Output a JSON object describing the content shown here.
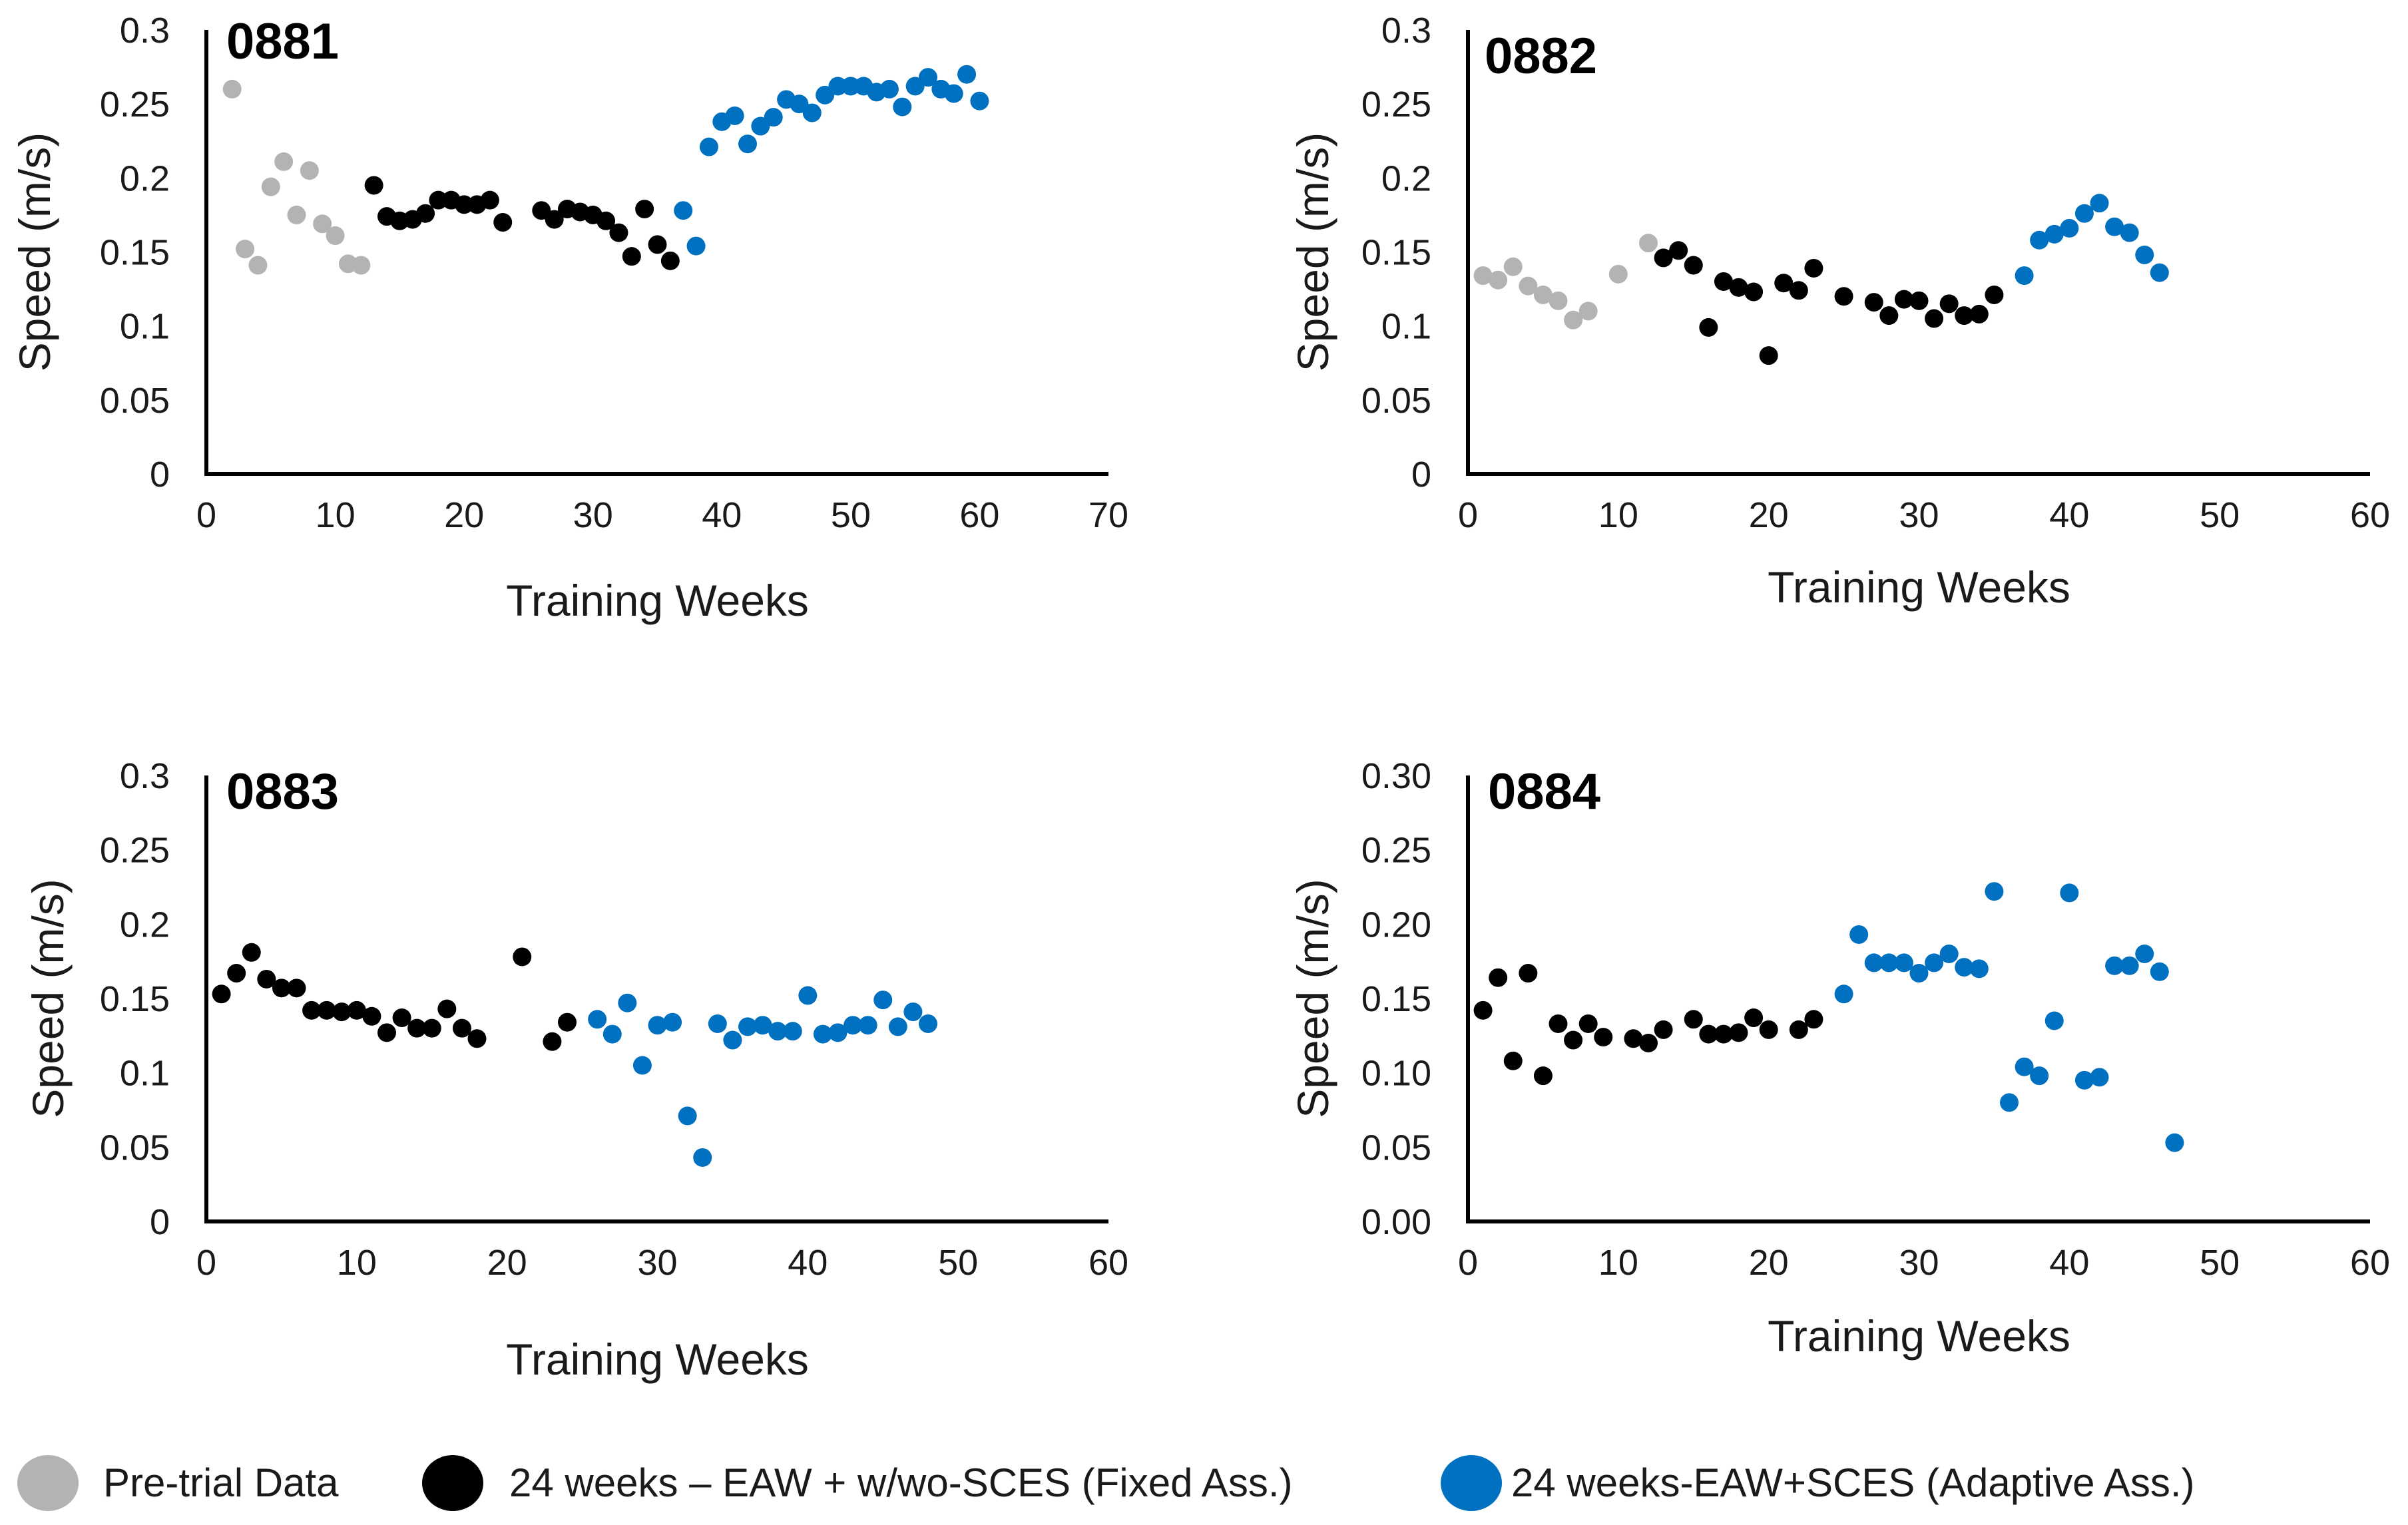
{
  "colors": {
    "pre_trial": "#b3b3b3",
    "fixed": "#000000",
    "adaptive": "#0070c0"
  },
  "legend": [
    {
      "key": "pre_trial",
      "label": "Pre-trial Data"
    },
    {
      "key": "fixed",
      "label": "24 weeks – EAW + w/wo-SCES (Fixed Ass.)"
    },
    {
      "key": "adaptive",
      "label": "24 weeks-EAW+SCES (Adaptive Ass.)"
    }
  ],
  "chart_data": [
    {
      "type": "scatter",
      "title": "0881",
      "xlabel": "Training Weeks",
      "ylabel": "Speed (m/s)",
      "xlim": [
        0,
        70
      ],
      "ylim": [
        0,
        0.3
      ],
      "xticks": [
        "0",
        "10",
        "20",
        "30",
        "40",
        "50",
        "60",
        "70"
      ],
      "yticks": [
        "0",
        "0.05",
        "0.1",
        "0.15",
        "0.2",
        "0.25",
        "0.3"
      ],
      "series": [
        {
          "name": "Pre-trial Data",
          "key": "pre_trial",
          "points": [
            [
              2,
              0.26
            ],
            [
              3,
              0.152
            ],
            [
              4,
              0.141
            ],
            [
              5,
              0.194
            ],
            [
              6,
              0.211
            ],
            [
              7,
              0.175
            ],
            [
              8,
              0.205
            ],
            [
              9,
              0.169
            ],
            [
              10,
              0.161
            ],
            [
              11,
              0.142
            ],
            [
              12,
              0.141
            ]
          ]
        },
        {
          "name": "24 weeks – EAW + w/wo-SCES (Fixed Ass.)",
          "key": "fixed",
          "points": [
            [
              13,
              0.195
            ],
            [
              14,
              0.174
            ],
            [
              15,
              0.171
            ],
            [
              16,
              0.172
            ],
            [
              17,
              0.176
            ],
            [
              18,
              0.185
            ],
            [
              19,
              0.185
            ],
            [
              20,
              0.182
            ],
            [
              21,
              0.182
            ],
            [
              22,
              0.185
            ],
            [
              23,
              0.17
            ],
            [
              26,
              0.178
            ],
            [
              27,
              0.172
            ],
            [
              28,
              0.179
            ],
            [
              29,
              0.177
            ],
            [
              30,
              0.175
            ],
            [
              31,
              0.171
            ],
            [
              32,
              0.163
            ],
            [
              33,
              0.147
            ],
            [
              34,
              0.179
            ],
            [
              35,
              0.155
            ],
            [
              36,
              0.144
            ]
          ]
        },
        {
          "name": "24 weeks-EAW+SCES (Adaptive Ass.)",
          "key": "adaptive",
          "points": [
            [
              37,
              0.178
            ],
            [
              38,
              0.154
            ],
            [
              39,
              0.221
            ],
            [
              40,
              0.238
            ],
            [
              41,
              0.242
            ],
            [
              42,
              0.223
            ],
            [
              43,
              0.235
            ],
            [
              44,
              0.241
            ],
            [
              45,
              0.253
            ],
            [
              46,
              0.25
            ],
            [
              47,
              0.244
            ],
            [
              48,
              0.256
            ],
            [
              49,
              0.262
            ],
            [
              50,
              0.262
            ],
            [
              51,
              0.262
            ],
            [
              52,
              0.258
            ],
            [
              53,
              0.26
            ],
            [
              54,
              0.248
            ],
            [
              55,
              0.262
            ],
            [
              56,
              0.268
            ],
            [
              57,
              0.26
            ],
            [
              58,
              0.257
            ],
            [
              59,
              0.27
            ],
            [
              60,
              0.252
            ]
          ]
        }
      ]
    },
    {
      "type": "scatter",
      "title": "0882",
      "xlabel": "Training Weeks",
      "ylabel": "Speed (m/s)",
      "xlim": [
        0,
        60
      ],
      "ylim": [
        0,
        0.3
      ],
      "xticks": [
        "0",
        "10",
        "20",
        "30",
        "40",
        "50",
        "60"
      ],
      "yticks": [
        "0",
        "0.05",
        "0.1",
        "0.15",
        "0.2",
        "0.25",
        "0.3"
      ],
      "series": [
        {
          "name": "Pre-trial Data",
          "key": "pre_trial",
          "points": [
            [
              1,
              0.134
            ],
            [
              2,
              0.131
            ],
            [
              3,
              0.14
            ],
            [
              4,
              0.127
            ],
            [
              5,
              0.121
            ],
            [
              6,
              0.117
            ],
            [
              7,
              0.104
            ],
            [
              8,
              0.11
            ],
            [
              10,
              0.135
            ],
            [
              12,
              0.156
            ]
          ]
        },
        {
          "name": "24 weeks – EAW + w/wo-SCES (Fixed Ass.)",
          "key": "fixed",
          "points": [
            [
              13,
              0.146
            ],
            [
              14,
              0.151
            ],
            [
              15,
              0.141
            ],
            [
              16,
              0.099
            ],
            [
              17,
              0.13
            ],
            [
              18,
              0.126
            ],
            [
              19,
              0.123
            ],
            [
              20,
              0.08
            ],
            [
              21,
              0.129
            ],
            [
              22,
              0.124
            ],
            [
              23,
              0.139
            ],
            [
              25,
              0.12
            ],
            [
              27,
              0.116
            ],
            [
              28,
              0.107
            ],
            [
              29,
              0.118
            ],
            [
              30,
              0.117
            ],
            [
              31,
              0.105
            ],
            [
              32,
              0.115
            ],
            [
              33,
              0.107
            ],
            [
              34,
              0.108
            ],
            [
              35,
              0.121
            ]
          ]
        },
        {
          "name": "24 weeks-EAW+SCES (Adaptive Ass.)",
          "key": "adaptive",
          "points": [
            [
              37,
              0.134
            ],
            [
              38,
              0.158
            ],
            [
              39,
              0.162
            ],
            [
              40,
              0.166
            ],
            [
              41,
              0.176
            ],
            [
              42,
              0.183
            ],
            [
              43,
              0.167
            ],
            [
              44,
              0.163
            ],
            [
              45,
              0.148
            ],
            [
              46,
              0.136
            ]
          ]
        }
      ]
    },
    {
      "type": "scatter",
      "title": "0883",
      "xlabel": "Training Weeks",
      "ylabel": "Speed (m/s)",
      "xlim": [
        0,
        60
      ],
      "ylim": [
        0,
        0.3
      ],
      "xticks": [
        "0",
        "10",
        "20",
        "30",
        "40",
        "50",
        "60"
      ],
      "yticks": [
        "0",
        "0.05",
        "0.1",
        "0.15",
        "0.2",
        "0.25",
        "0.3"
      ],
      "series": [
        {
          "name": "24 weeks – EAW + w/wo-SCES (Fixed Ass.)",
          "key": "fixed",
          "points": [
            [
              1,
              0.153
            ],
            [
              2,
              0.167
            ],
            [
              3,
              0.181
            ],
            [
              4,
              0.163
            ],
            [
              5,
              0.157
            ],
            [
              6,
              0.157
            ],
            [
              7,
              0.142
            ],
            [
              8,
              0.142
            ],
            [
              9,
              0.141
            ],
            [
              10,
              0.142
            ],
            [
              11,
              0.138
            ],
            [
              12,
              0.127
            ],
            [
              13,
              0.137
            ],
            [
              14,
              0.13
            ],
            [
              15,
              0.13
            ],
            [
              16,
              0.143
            ],
            [
              17,
              0.13
            ],
            [
              18,
              0.123
            ],
            [
              21,
              0.178
            ],
            [
              23,
              0.121
            ],
            [
              24,
              0.134
            ]
          ]
        },
        {
          "name": "24 weeks-EAW+SCES (Adaptive Ass.)",
          "key": "adaptive",
          "points": [
            [
              26,
              0.136
            ],
            [
              27,
              0.126
            ],
            [
              28,
              0.147
            ],
            [
              29,
              0.105
            ],
            [
              30,
              0.132
            ],
            [
              31,
              0.134
            ],
            [
              32,
              0.071
            ],
            [
              33,
              0.043
            ],
            [
              34,
              0.133
            ],
            [
              35,
              0.122
            ],
            [
              36,
              0.131
            ],
            [
              37,
              0.132
            ],
            [
              38,
              0.128
            ],
            [
              39,
              0.128
            ],
            [
              40,
              0.152
            ],
            [
              41,
              0.126
            ],
            [
              42,
              0.127
            ],
            [
              43,
              0.132
            ],
            [
              44,
              0.132
            ],
            [
              45,
              0.149
            ],
            [
              46,
              0.131
            ],
            [
              47,
              0.141
            ],
            [
              48,
              0.133
            ]
          ]
        }
      ]
    },
    {
      "type": "scatter",
      "title": "0884",
      "xlabel": "Training Weeks",
      "ylabel": "Speed (m/s)",
      "xlim": [
        0,
        60
      ],
      "ylim": [
        0,
        0.3
      ],
      "xticks": [
        "0",
        "10",
        "20",
        "30",
        "40",
        "50",
        "60"
      ],
      "yticks": [
        "0.00",
        "0.05",
        "0.10",
        "0.15",
        "0.20",
        "0.25",
        "0.30"
      ],
      "series": [
        {
          "name": "24 weeks – EAW + w/wo-SCES (Fixed Ass.)",
          "key": "fixed",
          "points": [
            [
              1,
              0.142
            ],
            [
              2,
              0.164
            ],
            [
              3,
              0.108
            ],
            [
              4,
              0.167
            ],
            [
              5,
              0.098
            ],
            [
              6,
              0.133
            ],
            [
              7,
              0.122
            ],
            [
              8,
              0.133
            ],
            [
              9,
              0.124
            ],
            [
              11,
              0.123
            ],
            [
              12,
              0.12
            ],
            [
              13,
              0.129
            ],
            [
              15,
              0.136
            ],
            [
              16,
              0.126
            ],
            [
              17,
              0.126
            ],
            [
              18,
              0.127
            ],
            [
              19,
              0.137
            ],
            [
              20,
              0.129
            ],
            [
              22,
              0.129
            ],
            [
              23,
              0.136
            ]
          ]
        },
        {
          "name": "24 weeks-EAW+SCES (Adaptive Ass.)",
          "key": "adaptive",
          "points": [
            [
              25,
              0.153
            ],
            [
              26,
              0.193
            ],
            [
              27,
              0.174
            ],
            [
              28,
              0.174
            ],
            [
              29,
              0.174
            ],
            [
              30,
              0.167
            ],
            [
              31,
              0.174
            ],
            [
              32,
              0.18
            ],
            [
              33,
              0.171
            ],
            [
              34,
              0.17
            ],
            [
              35,
              0.222
            ],
            [
              36,
              0.08
            ],
            [
              37,
              0.104
            ],
            [
              38,
              0.098
            ],
            [
              39,
              0.135
            ],
            [
              40,
              0.221
            ],
            [
              41,
              0.095
            ],
            [
              42,
              0.097
            ],
            [
              43,
              0.172
            ],
            [
              44,
              0.172
            ],
            [
              45,
              0.18
            ],
            [
              46,
              0.168
            ],
            [
              47,
              0.053
            ]
          ]
        }
      ]
    }
  ]
}
